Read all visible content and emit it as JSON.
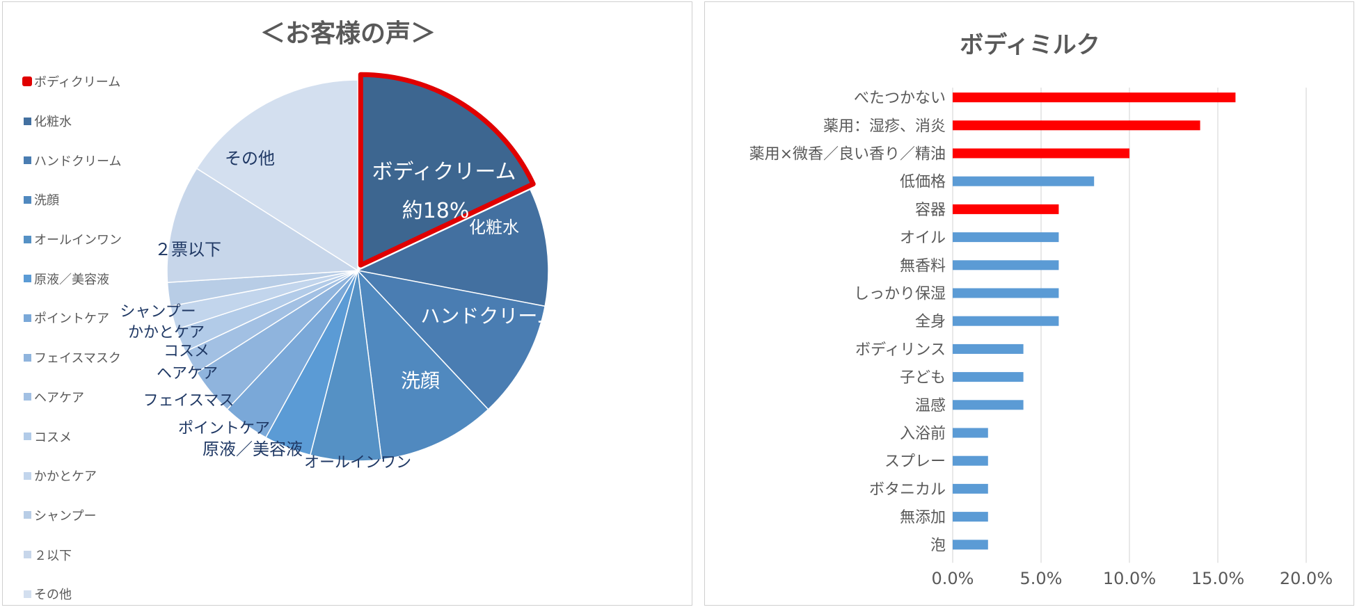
{
  "chart_data": [
    {
      "type": "pie",
      "title": "＜お客様の声＞",
      "highlight": "ボディクリーム",
      "highlight_color": "#e00000",
      "slices": [
        {
          "label": "ボディクリーム",
          "legend": "ボディクリーム",
          "value": 18,
          "chart_label": "ボディクリーム",
          "chart_label_2": "約18%",
          "color": "#3d6690",
          "text_color": "#ffffff"
        },
        {
          "label": "化粧水",
          "legend": "化粧水",
          "value": 10,
          "chart_label": "化粧水",
          "color": "#4370a0",
          "text_color": "#ffffff"
        },
        {
          "label": "ハンドクリーム",
          "legend": "ハンドクリーム",
          "value": 10,
          "chart_label": "ハンドクリーム",
          "color": "#4a7db2",
          "text_color": "#ffffff"
        },
        {
          "label": "洗顔",
          "legend": "洗顔",
          "value": 10,
          "chart_label": "洗顔",
          "color": "#5089bf",
          "text_color": "#ffffff"
        },
        {
          "label": "オールインワン",
          "legend": "オールインワン",
          "value": 6,
          "chart_label": "オールインワン",
          "color": "#5591c5",
          "text_color": "#1f3864"
        },
        {
          "label": "原液／美容液",
          "legend": "原液／美容液",
          "value": 4,
          "chart_label": "原液／美容液",
          "color": "#5b9bd5",
          "text_color": "#1f3864"
        },
        {
          "label": "ポイントケア",
          "legend": "ポイントケア",
          "value": 4,
          "chart_label": "ポイントケア",
          "color": "#7aa8d8",
          "text_color": "#1f3864"
        },
        {
          "label": "フェイスマスク",
          "legend": "フェイスマスク",
          "value": 4,
          "chart_label": "フェイスマス",
          "color": "#8fb4dd",
          "text_color": "#1f3864"
        },
        {
          "label": "ヘアケア",
          "legend": "ヘアケア",
          "value": 2,
          "chart_label": "ヘアケア",
          "color": "#a2c0e3",
          "text_color": "#1f3864"
        },
        {
          "label": "コスメ",
          "legend": "コスメ",
          "value": 2,
          "chart_label": "コスメ",
          "color": "#b2cbe8",
          "text_color": "#1f3864"
        },
        {
          "label": "かかとケア",
          "legend": "かかとケア",
          "value": 2,
          "chart_label": "かかとケア",
          "color": "#c2d5ec",
          "text_color": "#1f3864"
        },
        {
          "label": "シャンプー",
          "legend": "シャンプー",
          "value": 2,
          "chart_label": "シャンプー",
          "color": "#b8cde6",
          "text_color": "#1f3864"
        },
        {
          "label": "２以下",
          "legend": "２以下",
          "value": 10,
          "chart_label": "２票以下",
          "color": "#c7d6ea",
          "text_color": "#1f3864"
        },
        {
          "label": "その他",
          "legend": "その他",
          "value": 16,
          "chart_label": "その他",
          "color": "#d3dfef",
          "text_color": "#1f3864"
        }
      ]
    },
    {
      "type": "bar",
      "orientation": "horizontal",
      "title": "ボディミルク",
      "categories": [
        "べたつかない",
        "薬用：湿疹、消炎",
        "薬用×微香／良い香り／精油",
        "低価格",
        "容器",
        "オイル",
        "無香料",
        "しっかり保湿",
        "全身",
        "ボディリンス",
        "子ども",
        "温感",
        "入浴前",
        "スプレー",
        "ボタニカル",
        "無添加",
        "泡"
      ],
      "values": [
        16,
        14,
        10,
        8,
        6,
        6,
        6,
        6,
        6,
        4,
        4,
        4,
        2,
        2,
        2,
        2,
        2
      ],
      "highlighted": [
        true,
        true,
        true,
        false,
        true,
        false,
        false,
        false,
        false,
        false,
        false,
        false,
        false,
        false,
        false,
        false,
        false
      ],
      "highlight_color": "#ff0000",
      "bar_color": "#5b9bd5",
      "xlim": [
        0,
        20
      ],
      "xticks": [
        0,
        5,
        10,
        15,
        20
      ],
      "xtick_labels": [
        "0.0%",
        "5.0%",
        "10.0%",
        "15.0%",
        "20.0%"
      ],
      "grid": true
    }
  ]
}
